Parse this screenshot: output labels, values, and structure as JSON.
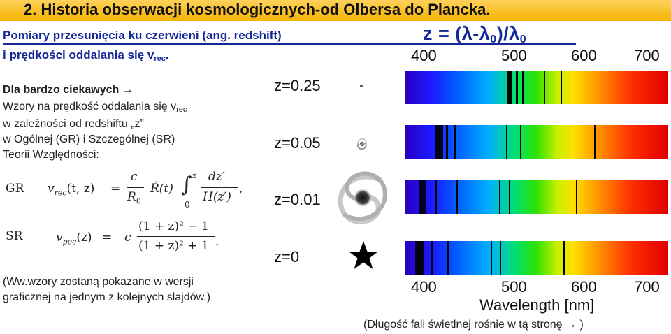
{
  "slide": {
    "title": "2. Historia obserwacji kosmologicznych-od Olbersa do Plancka.",
    "subtitle_line1": "Pomiary przesunięcia ku czerwieni (ang. redshift)",
    "formula": {
      "parts": [
        "z = (λ-λ",
        "0",
        ")/λ",
        "0"
      ]
    },
    "subtitle_line2_main": "i prędkości oddalania się v",
    "subtitle_line2_sub": "rec",
    "subtitle_line2_end": "."
  },
  "left_text": {
    "heading": "Dla bardzo ciekawych",
    "arrow": "→",
    "line1_main": "Wzory na prędkość oddalania się v",
    "line1_sub": "rec",
    "line2": "w zależności od redshiftu „z”",
    "line3": "w Ogólnej (GR) i Szczególnej (SR)",
    "line4": "Teorii Względności:"
  },
  "equations": {
    "gr_label": "GR",
    "gr_lhs": "v",
    "gr_lhs_sub": "rec",
    "gr_lhs_args": "(t, z)",
    "equals": "=",
    "c": "c",
    "R0": "R",
    "R0_sub": "0",
    "Rdot": "Ṙ(t)",
    "int_upper": "z",
    "int_lower": "0",
    "int_sign": "∫",
    "dz": "dz′",
    "Hz": "H(z′)",
    "gr_end": ",",
    "sr_label": "SR",
    "sr_lhs": "v",
    "sr_lhs_sub": "pec",
    "sr_lhs_args": "(z)",
    "sr_num": "(1 + z)² − 1",
    "sr_den": "(1 + z)² + 1",
    "sr_end": "."
  },
  "note_bottom": {
    "line1": "(Ww.wzory zostaną pokazane w wersji",
    "line2": "graficznej na jednym z kolejnych slajdów.)"
  },
  "figure": {
    "top_ticks": [
      "400",
      "500",
      "600",
      "700"
    ],
    "bottom_ticks": [
      "400",
      "500",
      "600",
      "700"
    ],
    "xlabel": "Wavelength [nm]",
    "rows": [
      {
        "z_label": "z=0.25",
        "object": "point-galaxy-icon"
      },
      {
        "z_label": "z=0.05",
        "object": "small-spiral-galaxy-icon"
      },
      {
        "z_label": "z=0.01",
        "object": "large-spiral-galaxy-icon"
      },
      {
        "z_label": "z=0",
        "object": "star-icon"
      }
    ],
    "spectrum_colors": [
      "#2b00c0",
      "#0060ff",
      "#00e070",
      "#ffe000",
      "#ff3000"
    ]
  },
  "caption": {
    "text": "(Długość fali świetlnej rośnie w tą stronę",
    "arrow": "→",
    "end": ")"
  }
}
